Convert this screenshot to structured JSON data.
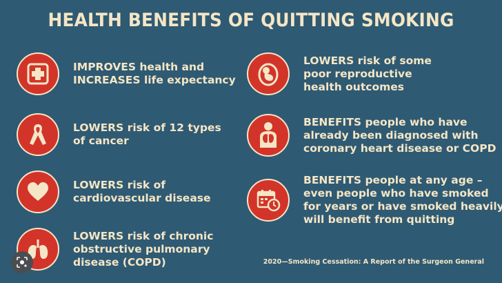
{
  "title": "HEALTH BENEFITS OF QUITTING SMOKING",
  "colors": {
    "background": "#2f5a73",
    "accent_red": "#d3342a",
    "cream_text": "#f4e6c6"
  },
  "benefits_left": [
    {
      "icon": "medical-cross-icon",
      "lines": [
        "IMPROVES health and",
        "INCREASES life expectancy"
      ]
    },
    {
      "icon": "cancer-ribbon-icon",
      "lines": [
        "LOWERS risk of 12 types",
        "of cancer"
      ]
    },
    {
      "icon": "heart-icon",
      "lines": [
        "LOWERS risk of",
        "cardiovascular disease"
      ]
    },
    {
      "icon": "lungs-icon",
      "lines": [
        "LOWERS risk of chronic",
        "obstructive pulmonary",
        "disease (COPD)"
      ]
    }
  ],
  "benefits_right": [
    {
      "icon": "fetus-icon",
      "lines": [
        "LOWERS risk of some",
        "poor reproductive",
        "health outcomes"
      ]
    },
    {
      "icon": "person-heart-lungs-icon",
      "lines": [
        "BENEFITS people who have",
        "already been diagnosed with",
        "coronary heart disease or COPD"
      ]
    },
    {
      "icon": "calendar-clock-icon",
      "lines": [
        "BENEFITS people at any age –",
        "even people who have smoked",
        "for years or have smoked heavily",
        "will benefit from quitting"
      ]
    }
  ],
  "source": "2020—Smoking Cessation: A Report of the Surgeon General",
  "overlay": {
    "icon": "lens-search-icon"
  }
}
